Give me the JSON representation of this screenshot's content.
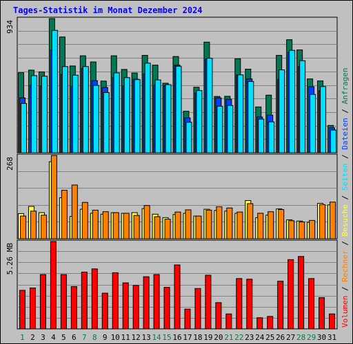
{
  "title": "Tages-Statistik im Monat Dezember 2024",
  "colors": {
    "background": "#c0c0c0",
    "title": "#0000ff",
    "anfragen": "#007856",
    "dateien": "#0040ff",
    "seiten": "#00e0ff",
    "besuche": "#ffff40",
    "rechner": "#ff8000",
    "volumen": "#ff0000",
    "weekend_day_label": "#008040",
    "weekday_label": "#000000",
    "grid": "#808080"
  },
  "chart_data": [
    {
      "type": "bar",
      "panel": "top",
      "max_label": "934",
      "ylim": [
        0,
        934
      ],
      "grid": true,
      "legend_right": [
        "Anfragen",
        "Dateien",
        "Seiten"
      ],
      "categories": [
        "1",
        "2",
        "3",
        "4",
        "5",
        "6",
        "7",
        "8",
        "9",
        "10",
        "11",
        "12",
        "13",
        "14",
        "15",
        "16",
        "17",
        "18",
        "19",
        "20",
        "21",
        "22",
        "23",
        "24",
        "25",
        "26",
        "27",
        "28",
        "29",
        "30",
        "31"
      ],
      "series": [
        {
          "name": "Anfragen",
          "values": [
            557,
            575,
            563,
            934,
            806,
            604,
            675,
            632,
            499,
            675,
            580,
            555,
            678,
            610,
            484,
            670,
            289,
            456,
            770,
            392,
            393,
            654,
            582,
            319,
            401,
            678,
            787,
            716,
            514,
            500,
            190
          ]
        },
        {
          "name": "Dateien",
          "values": [
            382,
            469,
            465,
            715,
            544,
            464,
            587,
            502,
            454,
            521,
            466,
            512,
            549,
            470,
            468,
            610,
            243,
            415,
            652,
            382,
            372,
            541,
            514,
            249,
            262,
            508,
            699,
            599,
            460,
            430,
            174
          ]
        },
        {
          "name": "Seiten",
          "values": [
            343,
            537,
            533,
            852,
            600,
            540,
            600,
            469,
            419,
            556,
            523,
            509,
            624,
            507,
            474,
            602,
            212,
            433,
            658,
            324,
            329,
            542,
            496,
            234,
            215,
            577,
            713,
            641,
            406,
            461,
            158
          ]
        }
      ]
    },
    {
      "type": "bar",
      "panel": "middle",
      "max_label": "268",
      "ylim": [
        0,
        268
      ],
      "grid": true,
      "legend_right": [
        "Besuche",
        "Rechner"
      ],
      "categories": [
        "1",
        "2",
        "3",
        "4",
        "5",
        "6",
        "7",
        "8",
        "9",
        "10",
        "11",
        "12",
        "13",
        "14",
        "15",
        "16",
        "17",
        "18",
        "19",
        "20",
        "21",
        "22",
        "23",
        "24",
        "25",
        "26",
        "27",
        "28",
        "29",
        "30",
        "31"
      ],
      "series": [
        {
          "name": "Besuche",
          "values": [
            81,
            104,
            84,
            248,
            132,
            72,
            95,
            82,
            79,
            84,
            82,
            84,
            97,
            79,
            68,
            78,
            82,
            73,
            95,
            91,
            89,
            82,
            123,
            68,
            76,
            96,
            61,
            57,
            53,
            114,
            109
          ]
        },
        {
          "name": "Rechner",
          "values": [
            73,
            89,
            76,
            268,
            156,
            173,
            117,
            92,
            87,
            84,
            82,
            75,
            107,
            71,
            63,
            86,
            93,
            73,
            92,
            103,
            99,
            86,
            113,
            82,
            87,
            94,
            58,
            54,
            59,
            110,
            118
          ]
        }
      ]
    },
    {
      "type": "bar",
      "panel": "bottom",
      "max_label": "5.26 MB",
      "ylim": [
        0,
        5.26
      ],
      "grid": true,
      "legend_right": [
        "Volumen",
        "Rechner",
        "Besuche",
        "Seiten",
        "Dateien",
        "Anfragen"
      ],
      "categories": [
        "1",
        "2",
        "3",
        "4",
        "5",
        "6",
        "7",
        "8",
        "9",
        "10",
        "11",
        "12",
        "13",
        "14",
        "15",
        "16",
        "17",
        "18",
        "19",
        "20",
        "21",
        "22",
        "23",
        "24",
        "25",
        "26",
        "27",
        "28",
        "29",
        "30",
        "31"
      ],
      "series": [
        {
          "name": "Volumen",
          "values": [
            2.32,
            2.46,
            3.27,
            5.26,
            3.27,
            2.55,
            3.42,
            3.61,
            2.15,
            3.38,
            2.77,
            2.62,
            3.14,
            3.27,
            2.5,
            3.85,
            1.19,
            2.43,
            3.23,
            1.58,
            0.9,
            3.03,
            2.99,
            0.67,
            0.75,
            2.87,
            4.17,
            4.36,
            3.03,
            1.88,
            0.9
          ]
        }
      ]
    }
  ]
}
